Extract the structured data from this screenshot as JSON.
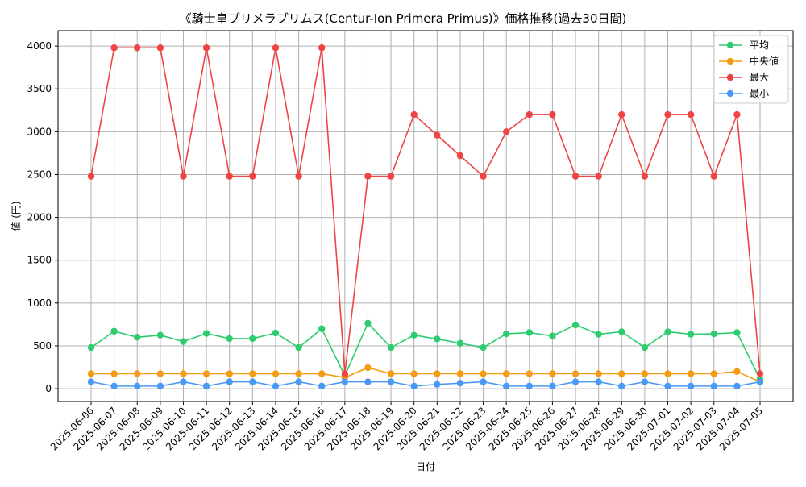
{
  "chart_data": {
    "type": "line",
    "title": "《騎士皇プリメラプリムス(Centur-Ion Primera Primus)》価格推移(過去30日間)",
    "xlabel": "日付",
    "ylabel": "値 (円)",
    "ylim": [
      -150,
      4180
    ],
    "yticks": [
      0,
      500,
      1000,
      1500,
      2000,
      2500,
      3000,
      3500,
      4000
    ],
    "grid": true,
    "legend_position": "top-right",
    "categories": [
      "2025-06-06",
      "2025-06-07",
      "2025-06-08",
      "2025-06-09",
      "2025-06-10",
      "2025-06-11",
      "2025-06-12",
      "2025-06-13",
      "2025-06-14",
      "2025-06-15",
      "2025-06-16",
      "2025-06-17",
      "2025-06-18",
      "2025-06-19",
      "2025-06-20",
      "2025-06-21",
      "2025-06-22",
      "2025-06-23",
      "2025-06-24",
      "2025-06-25",
      "2025-06-26",
      "2025-06-27",
      "2025-06-28",
      "2025-06-29",
      "2025-06-30",
      "2025-07-01",
      "2025-07-02",
      "2025-07-03",
      "2025-07-04",
      "2025-07-05"
    ],
    "series": [
      {
        "name": "平均",
        "color": "#2ecc71",
        "values": [
          480,
          670,
          600,
          625,
          550,
          645,
          585,
          585,
          650,
          480,
          700,
          150,
          765,
          480,
          625,
          580,
          530,
          480,
          640,
          655,
          615,
          745,
          635,
          665,
          480,
          665,
          635,
          640,
          655,
          110
        ]
      },
      {
        "name": "中央値",
        "color": "#f39c12",
        "values": [
          175,
          175,
          175,
          175,
          175,
          175,
          175,
          175,
          175,
          175,
          175,
          130,
          245,
          175,
          175,
          175,
          175,
          175,
          175,
          175,
          175,
          175,
          175,
          175,
          175,
          175,
          175,
          175,
          200,
          80
        ]
      },
      {
        "name": "最大",
        "color": "#ef4444",
        "values": [
          2480,
          3980,
          3980,
          3980,
          2480,
          3980,
          2480,
          2480,
          3980,
          2480,
          3980,
          175,
          2480,
          2480,
          3200,
          2960,
          2720,
          2480,
          3000,
          3200,
          3200,
          2480,
          2480,
          3200,
          2480,
          3200,
          3200,
          2480,
          3200,
          175
        ]
      },
      {
        "name": "最小",
        "color": "#4a9af5",
        "values": [
          80,
          30,
          30,
          30,
          80,
          30,
          80,
          80,
          30,
          80,
          30,
          80,
          80,
          80,
          30,
          50,
          65,
          80,
          30,
          30,
          30,
          80,
          80,
          30,
          80,
          30,
          30,
          30,
          30,
          80
        ]
      }
    ]
  }
}
